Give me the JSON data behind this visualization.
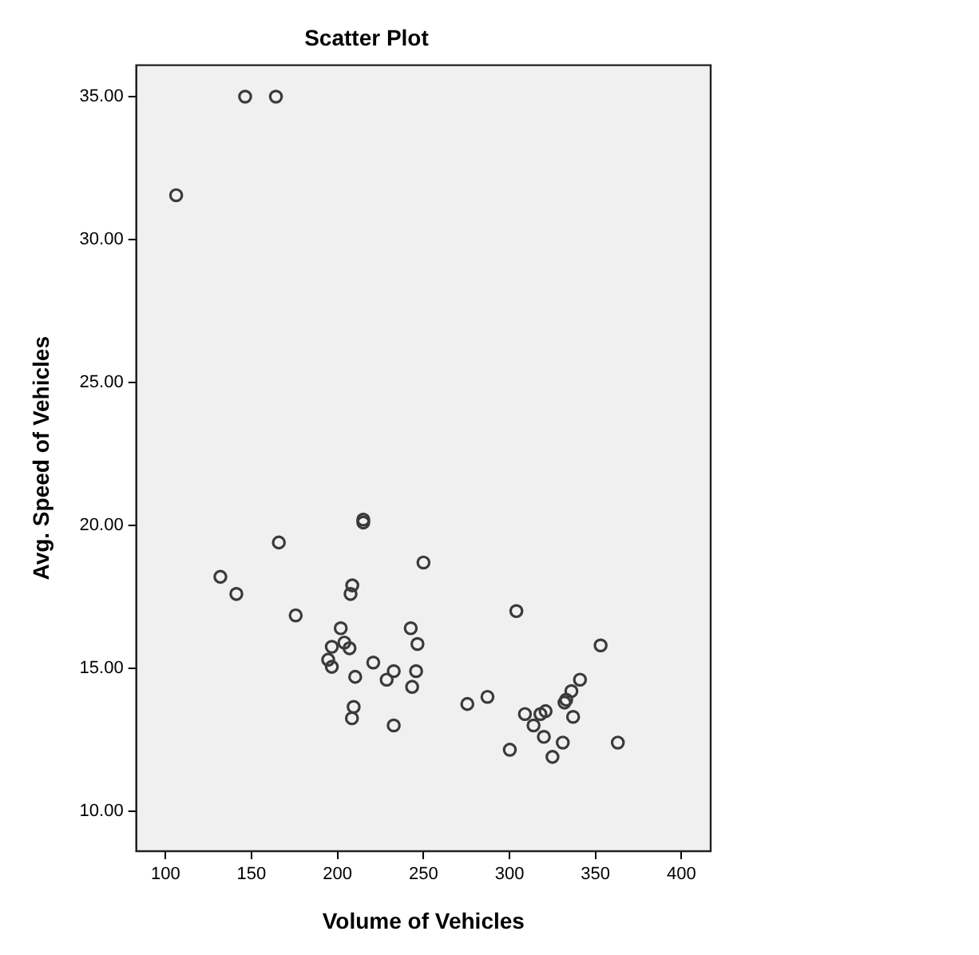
{
  "chart_data": {
    "type": "scatter",
    "title": "Scatter Plot",
    "xlabel": "Volume of Vehicles",
    "ylabel": "Avg. Speed of Vehicles",
    "xlim": [
      83,
      417
    ],
    "xticks": [
      100,
      150,
      200,
      250,
      300,
      350,
      400
    ],
    "ylim": [
      8.6,
      36.1
    ],
    "yticks": [
      {
        "value": 10,
        "label": "10.00"
      },
      {
        "value": 15,
        "label": "15.00"
      },
      {
        "value": 20,
        "label": "20.00"
      },
      {
        "value": 25,
        "label": "25.00"
      },
      {
        "value": 30,
        "label": "30.00"
      },
      {
        "value": 35,
        "label": "35.00"
      }
    ],
    "marker": "circle",
    "grid": false,
    "legend": false,
    "series": [
      {
        "color": "#3a3a3a",
        "x": [
          106.2,
          146.3,
          164.2,
          131.9,
          141.2,
          165.9,
          175.7,
          208.6,
          207.6,
          201.9,
          204,
          207,
          196.7,
          194.6,
          196.7,
          210.3,
          209.4,
          208.4,
          242.6,
          246.5,
          220.8,
          232.7,
          228.6,
          245.7,
          243.4,
          232.7,
          275.5,
          287.2,
          300.2,
          215,
          215,
          250,
          304,
          353,
          341,
          336,
          333,
          332,
          337,
          331,
          363,
          325,
          320,
          318,
          321,
          314,
          309
        ],
        "values": [
          31.55,
          35.0,
          35.0,
          18.2,
          17.6,
          19.4,
          16.85,
          17.9,
          17.6,
          16.4,
          15.9,
          15.7,
          15.75,
          15.3,
          15.05,
          14.7,
          13.65,
          13.25,
          16.4,
          15.85,
          15.2,
          14.9,
          14.6,
          14.9,
          14.35,
          13.0,
          13.75,
          14.0,
          12.15,
          20.1,
          20.2,
          18.7,
          17.0,
          15.8,
          14.6,
          14.2,
          13.9,
          13.8,
          13.3,
          12.4,
          12.4,
          11.9,
          12.6,
          13.4,
          13.5,
          13.0,
          13.4
        ]
      }
    ]
  }
}
